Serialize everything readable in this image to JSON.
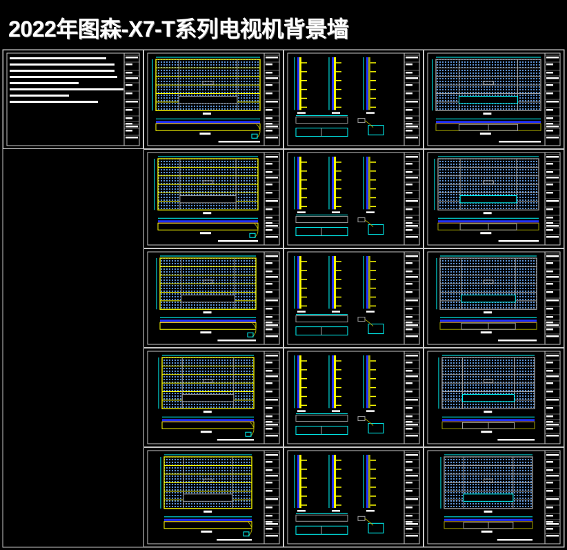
{
  "title": "2022年图森-X7-T系列电视机背景墙",
  "drawing_set": {
    "rows": 5,
    "sheet_types_per_row": [
      "elevation-yellow",
      "section-details",
      "elevation-grey"
    ],
    "has_notes_sheet": true
  },
  "colors": {
    "background": "#000000",
    "frame": "#c8c8c8",
    "cyan": "#00ffff",
    "yellow": "#ffff00",
    "olive": "#a0a000",
    "blue": "#2030ff",
    "magenta": "#ff00ff",
    "hatch": "#5a8fd0",
    "white": "#ffffff",
    "grey": "#a0a0a0"
  }
}
